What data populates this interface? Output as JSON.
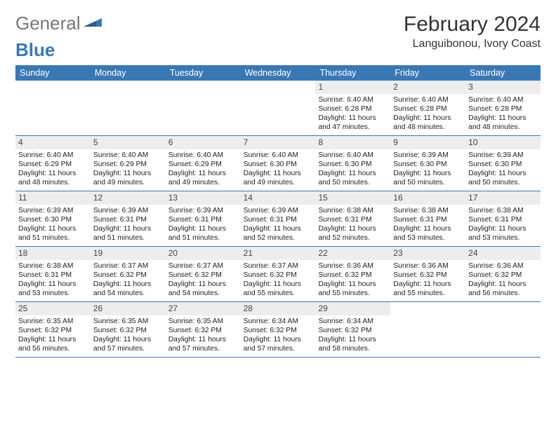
{
  "brand": {
    "part1": "General",
    "part2": "Blue"
  },
  "title": "February 2024",
  "location": "Languibonou, Ivory Coast",
  "colors": {
    "header_bg": "#3a78b5",
    "header_text": "#ffffff",
    "daynum_bg": "#ededed",
    "border": "#3a78b5",
    "body_text": "#222222"
  },
  "typography": {
    "title_fontsize": 30,
    "location_fontsize": 16,
    "weekday_fontsize": 12.5,
    "daynum_fontsize": 12,
    "body_fontsize": 10.3
  },
  "weekdays": [
    "Sunday",
    "Monday",
    "Tuesday",
    "Wednesday",
    "Thursday",
    "Friday",
    "Saturday"
  ],
  "weeks": [
    [
      null,
      null,
      null,
      null,
      {
        "n": "1",
        "sunrise": "6:40 AM",
        "sunset": "6:28 PM",
        "daylight": "11 hours and 47 minutes."
      },
      {
        "n": "2",
        "sunrise": "6:40 AM",
        "sunset": "6:28 PM",
        "daylight": "11 hours and 48 minutes."
      },
      {
        "n": "3",
        "sunrise": "6:40 AM",
        "sunset": "6:28 PM",
        "daylight": "11 hours and 48 minutes."
      }
    ],
    [
      {
        "n": "4",
        "sunrise": "6:40 AM",
        "sunset": "6:29 PM",
        "daylight": "11 hours and 48 minutes."
      },
      {
        "n": "5",
        "sunrise": "6:40 AM",
        "sunset": "6:29 PM",
        "daylight": "11 hours and 49 minutes."
      },
      {
        "n": "6",
        "sunrise": "6:40 AM",
        "sunset": "6:29 PM",
        "daylight": "11 hours and 49 minutes."
      },
      {
        "n": "7",
        "sunrise": "6:40 AM",
        "sunset": "6:30 PM",
        "daylight": "11 hours and 49 minutes."
      },
      {
        "n": "8",
        "sunrise": "6:40 AM",
        "sunset": "6:30 PM",
        "daylight": "11 hours and 50 minutes."
      },
      {
        "n": "9",
        "sunrise": "6:39 AM",
        "sunset": "6:30 PM",
        "daylight": "11 hours and 50 minutes."
      },
      {
        "n": "10",
        "sunrise": "6:39 AM",
        "sunset": "6:30 PM",
        "daylight": "11 hours and 50 minutes."
      }
    ],
    [
      {
        "n": "11",
        "sunrise": "6:39 AM",
        "sunset": "6:30 PM",
        "daylight": "11 hours and 51 minutes."
      },
      {
        "n": "12",
        "sunrise": "6:39 AM",
        "sunset": "6:31 PM",
        "daylight": "11 hours and 51 minutes."
      },
      {
        "n": "13",
        "sunrise": "6:39 AM",
        "sunset": "6:31 PM",
        "daylight": "11 hours and 51 minutes."
      },
      {
        "n": "14",
        "sunrise": "6:39 AM",
        "sunset": "6:31 PM",
        "daylight": "11 hours and 52 minutes."
      },
      {
        "n": "15",
        "sunrise": "6:38 AM",
        "sunset": "6:31 PM",
        "daylight": "11 hours and 52 minutes."
      },
      {
        "n": "16",
        "sunrise": "6:38 AM",
        "sunset": "6:31 PM",
        "daylight": "11 hours and 53 minutes."
      },
      {
        "n": "17",
        "sunrise": "6:38 AM",
        "sunset": "6:31 PM",
        "daylight": "11 hours and 53 minutes."
      }
    ],
    [
      {
        "n": "18",
        "sunrise": "6:38 AM",
        "sunset": "6:31 PM",
        "daylight": "11 hours and 53 minutes."
      },
      {
        "n": "19",
        "sunrise": "6:37 AM",
        "sunset": "6:32 PM",
        "daylight": "11 hours and 54 minutes."
      },
      {
        "n": "20",
        "sunrise": "6:37 AM",
        "sunset": "6:32 PM",
        "daylight": "11 hours and 54 minutes."
      },
      {
        "n": "21",
        "sunrise": "6:37 AM",
        "sunset": "6:32 PM",
        "daylight": "11 hours and 55 minutes."
      },
      {
        "n": "22",
        "sunrise": "6:36 AM",
        "sunset": "6:32 PM",
        "daylight": "11 hours and 55 minutes."
      },
      {
        "n": "23",
        "sunrise": "6:36 AM",
        "sunset": "6:32 PM",
        "daylight": "11 hours and 55 minutes."
      },
      {
        "n": "24",
        "sunrise": "6:36 AM",
        "sunset": "6:32 PM",
        "daylight": "11 hours and 56 minutes."
      }
    ],
    [
      {
        "n": "25",
        "sunrise": "6:35 AM",
        "sunset": "6:32 PM",
        "daylight": "11 hours and 56 minutes."
      },
      {
        "n": "26",
        "sunrise": "6:35 AM",
        "sunset": "6:32 PM",
        "daylight": "11 hours and 57 minutes."
      },
      {
        "n": "27",
        "sunrise": "6:35 AM",
        "sunset": "6:32 PM",
        "daylight": "11 hours and 57 minutes."
      },
      {
        "n": "28",
        "sunrise": "6:34 AM",
        "sunset": "6:32 PM",
        "daylight": "11 hours and 57 minutes."
      },
      {
        "n": "29",
        "sunrise": "6:34 AM",
        "sunset": "6:32 PM",
        "daylight": "11 hours and 58 minutes."
      },
      null,
      null
    ]
  ],
  "labels": {
    "sunrise_prefix": "Sunrise: ",
    "sunset_prefix": "Sunset: ",
    "daylight_prefix": "Daylight: "
  }
}
